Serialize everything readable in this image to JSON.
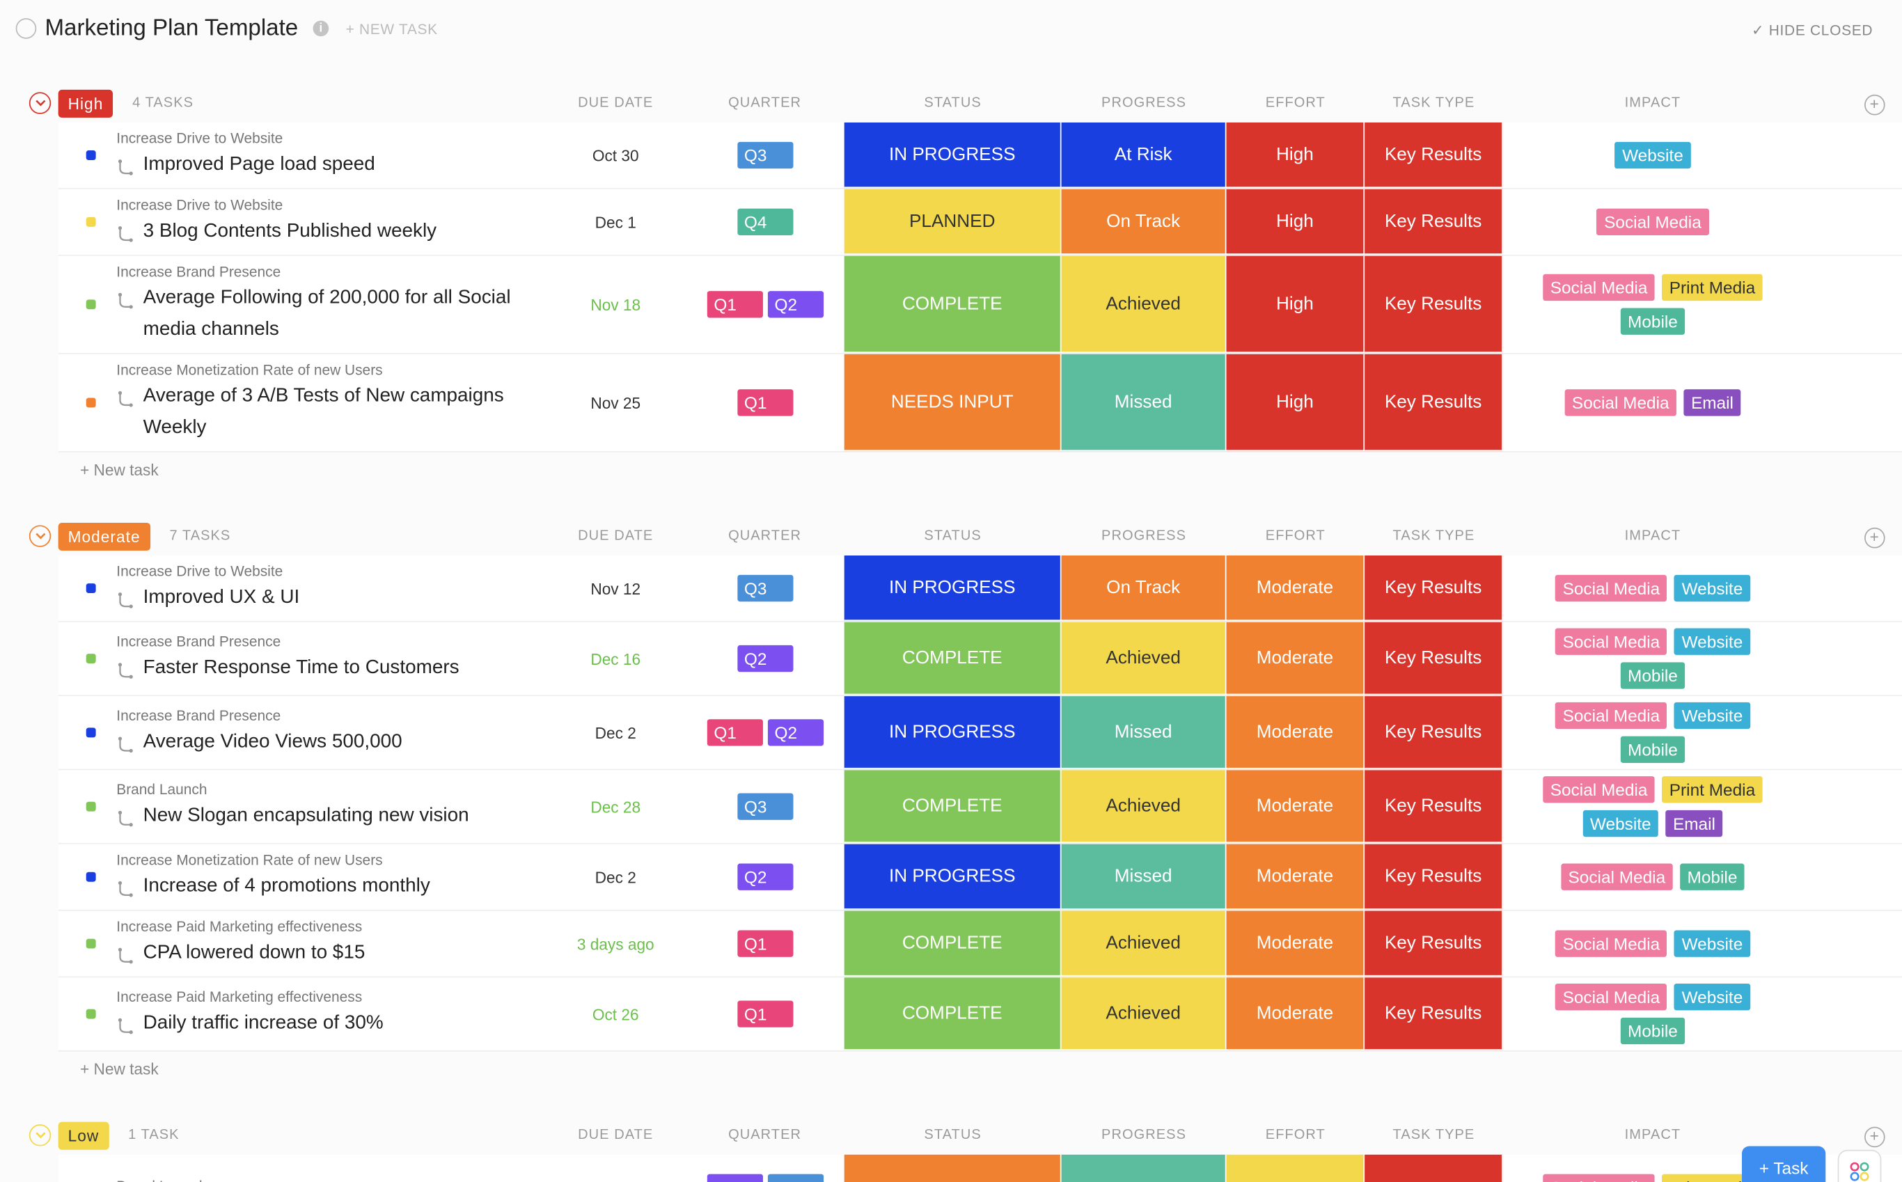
{
  "header": {
    "title": "Marketing Plan Template",
    "new_task": "+ NEW TASK",
    "hide_closed": "✓ HIDE CLOSED"
  },
  "columns": [
    "DUE DATE",
    "QUARTER",
    "STATUS",
    "PROGRESS",
    "EFFORT",
    "TASK TYPE",
    "IMPACT"
  ],
  "add_task": "+ New task",
  "task_button": "Task",
  "groups": [
    {
      "label": "High",
      "color": "#d9342b",
      "count": "4 TASKS",
      "rows": [
        {
          "parent": "Increase Drive to Website",
          "name": "Improved Page load speed",
          "due": "Oct 30",
          "quarters": [
            {
              "text": "Q3",
              "color": "#4a90d9"
            }
          ],
          "status": {
            "text": "IN PROGRESS",
            "color": "#1a3fe0"
          },
          "progress": {
            "text": "At Risk",
            "color": "#1a3fe0"
          },
          "effort": {
            "text": "High",
            "color": "#d9342b"
          },
          "task_type": {
            "text": "Key Results",
            "color": "#d9342b"
          },
          "impact": [
            {
              "text": "Website",
              "color": "#3bb0d6"
            }
          ]
        },
        {
          "parent": "Increase Drive to Website",
          "name": "3 Blog Contents Published weekly",
          "due": "Dec 1",
          "quarters": [
            {
              "text": "Q4",
              "color": "#4fb89a"
            }
          ],
          "status": {
            "text": "PLANNED",
            "color": "#f2d84a"
          },
          "progress": {
            "text": "On Track",
            "color": "#ef8130"
          },
          "effort": {
            "text": "High",
            "color": "#d9342b"
          },
          "task_type": {
            "text": "Key Results",
            "color": "#d9342b"
          },
          "impact": [
            {
              "text": "Social Media",
              "color": "#ef7ba0"
            }
          ]
        },
        {
          "parent": "Increase Brand Presence",
          "name": "Average Following of 200,000 for all Social media channels",
          "due": "Nov 18",
          "due_color": "#6bc04b",
          "quarters": [
            {
              "text": "Q1",
              "color": "#e8457a"
            },
            {
              "text": "Q2",
              "color": "#7b4ff0"
            }
          ],
          "status": {
            "text": "COMPLETE",
            "color": "#82c65a"
          },
          "progress": {
            "text": "Achieved",
            "color": "#f2d84a"
          },
          "effort": {
            "text": "High",
            "color": "#d9342b"
          },
          "task_type": {
            "text": "Key Results",
            "color": "#d9342b"
          },
          "impact": [
            {
              "text": "Social Media",
              "color": "#ef7ba0"
            },
            {
              "text": "Print Media",
              "color": "#f2d84a"
            },
            {
              "text": "Mobile",
              "color": "#4fb89a"
            }
          ]
        },
        {
          "parent": "Increase Monetization Rate of new Users",
          "name": "Average of 3 A/B Tests of New campaigns Weekly",
          "due": "Nov 25",
          "quarters": [
            {
              "text": "Q1",
              "color": "#e8457a"
            }
          ],
          "status": {
            "text": "NEEDS INPUT",
            "color": "#ef8130"
          },
          "progress": {
            "text": "Missed",
            "color": "#5bbd9e"
          },
          "effort": {
            "text": "High",
            "color": "#d9342b"
          },
          "task_type": {
            "text": "Key Results",
            "color": "#d9342b"
          },
          "impact": [
            {
              "text": "Social Media",
              "color": "#ef7ba0"
            },
            {
              "text": "Email",
              "color": "#8a4fbf"
            }
          ]
        }
      ]
    },
    {
      "label": "Moderate",
      "color": "#ef8130",
      "count": "7 TASKS",
      "rows": [
        {
          "parent": "Increase Drive to Website",
          "name": "Improved UX & UI",
          "due": "Nov 12",
          "quarters": [
            {
              "text": "Q3",
              "color": "#4a90d9"
            }
          ],
          "status": {
            "text": "IN PROGRESS",
            "color": "#1a3fe0"
          },
          "progress": {
            "text": "On Track",
            "color": "#ef8130"
          },
          "effort": {
            "text": "Moderate",
            "color": "#ef8130"
          },
          "task_type": {
            "text": "Key Results",
            "color": "#d9342b"
          },
          "impact": [
            {
              "text": "Social Media",
              "color": "#ef7ba0"
            },
            {
              "text": "Website",
              "color": "#3bb0d6"
            }
          ]
        },
        {
          "parent": "Increase Brand Presence",
          "name": "Faster Response Time to Customers",
          "due": "Dec 16",
          "due_color": "#6bc04b",
          "quarters": [
            {
              "text": "Q2",
              "color": "#7b4ff0"
            }
          ],
          "status": {
            "text": "COMPLETE",
            "color": "#82c65a"
          },
          "progress": {
            "text": "Achieved",
            "color": "#f2d84a"
          },
          "effort": {
            "text": "Moderate",
            "color": "#ef8130"
          },
          "task_type": {
            "text": "Key Results",
            "color": "#d9342b"
          },
          "impact": [
            {
              "text": "Social Media",
              "color": "#ef7ba0"
            },
            {
              "text": "Website",
              "color": "#3bb0d6"
            },
            {
              "text": "Mobile",
              "color": "#4fb89a"
            }
          ]
        },
        {
          "parent": "Increase Brand Presence",
          "name": "Average Video Views 500,000",
          "due": "Dec 2",
          "quarters": [
            {
              "text": "Q1",
              "color": "#e8457a"
            },
            {
              "text": "Q2",
              "color": "#7b4ff0"
            }
          ],
          "status": {
            "text": "IN PROGRESS",
            "color": "#1a3fe0"
          },
          "progress": {
            "text": "Missed",
            "color": "#5bbd9e"
          },
          "effort": {
            "text": "Moderate",
            "color": "#ef8130"
          },
          "task_type": {
            "text": "Key Results",
            "color": "#d9342b"
          },
          "impact": [
            {
              "text": "Social Media",
              "color": "#ef7ba0"
            },
            {
              "text": "Website",
              "color": "#3bb0d6"
            },
            {
              "text": "Mobile",
              "color": "#4fb89a"
            }
          ]
        },
        {
          "parent": "Brand Launch",
          "name": "New Slogan encapsulating new vision",
          "due": "Dec 28",
          "due_color": "#6bc04b",
          "quarters": [
            {
              "text": "Q3",
              "color": "#4a90d9"
            }
          ],
          "status": {
            "text": "COMPLETE",
            "color": "#82c65a"
          },
          "progress": {
            "text": "Achieved",
            "color": "#f2d84a"
          },
          "effort": {
            "text": "Moderate",
            "color": "#ef8130"
          },
          "task_type": {
            "text": "Key Results",
            "color": "#d9342b"
          },
          "impact": [
            {
              "text": "Social Media",
              "color": "#ef7ba0"
            },
            {
              "text": "Print Media",
              "color": "#f2d84a"
            },
            {
              "text": "Website",
              "color": "#3bb0d6"
            },
            {
              "text": "Email",
              "color": "#8a4fbf"
            }
          ]
        },
        {
          "parent": "Increase Monetization Rate of new Users",
          "name": "Increase of 4 promotions monthly",
          "due": "Dec 2",
          "quarters": [
            {
              "text": "Q2",
              "color": "#7b4ff0"
            }
          ],
          "status": {
            "text": "IN PROGRESS",
            "color": "#1a3fe0"
          },
          "progress": {
            "text": "Missed",
            "color": "#5bbd9e"
          },
          "effort": {
            "text": "Moderate",
            "color": "#ef8130"
          },
          "task_type": {
            "text": "Key Results",
            "color": "#d9342b"
          },
          "impact": [
            {
              "text": "Social Media",
              "color": "#ef7ba0"
            },
            {
              "text": "Mobile",
              "color": "#4fb89a"
            }
          ]
        },
        {
          "parent": "Increase Paid Marketing effectiveness",
          "name": "CPA lowered down to $15",
          "due": "3 days ago",
          "due_color": "#6bc04b",
          "quarters": [
            {
              "text": "Q1",
              "color": "#e8457a"
            }
          ],
          "status": {
            "text": "COMPLETE",
            "color": "#82c65a"
          },
          "progress": {
            "text": "Achieved",
            "color": "#f2d84a"
          },
          "effort": {
            "text": "Moderate",
            "color": "#ef8130"
          },
          "task_type": {
            "text": "Key Results",
            "color": "#d9342b"
          },
          "impact": [
            {
              "text": "Social Media",
              "color": "#ef7ba0"
            },
            {
              "text": "Website",
              "color": "#3bb0d6"
            }
          ]
        },
        {
          "parent": "Increase Paid Marketing effectiveness",
          "name": "Daily traffic increase of 30%",
          "due": "Oct 26",
          "due_color": "#6bc04b",
          "quarters": [
            {
              "text": "Q1",
              "color": "#e8457a"
            }
          ],
          "status": {
            "text": "COMPLETE",
            "color": "#82c65a"
          },
          "progress": {
            "text": "Achieved",
            "color": "#f2d84a"
          },
          "effort": {
            "text": "Moderate",
            "color": "#ef8130"
          },
          "task_type": {
            "text": "Key Results",
            "color": "#d9342b"
          },
          "impact": [
            {
              "text": "Social Media",
              "color": "#ef7ba0"
            },
            {
              "text": "Website",
              "color": "#3bb0d6"
            },
            {
              "text": "Mobile",
              "color": "#4fb89a"
            }
          ]
        }
      ]
    },
    {
      "label": "Low",
      "color": "#f2d84a",
      "count": "1 TASK",
      "rows": [
        {
          "parent": "Brand Launch",
          "quarters": [
            {
              "color": "#7b4ff0"
            },
            {
              "color": "#4a90d9"
            }
          ],
          "status": {
            "color": "#ef8130"
          },
          "progress": {
            "color": "#5bbd9e"
          },
          "effort": {
            "color": "#f2d84a"
          },
          "task_type": {
            "color": "#d9342b"
          },
          "impact": [
            {
              "text": "Social Media",
              "color": "#ef7ba0"
            },
            {
              "text": "Print Media",
              "color": "#f2d84a"
            }
          ]
        }
      ]
    }
  ]
}
